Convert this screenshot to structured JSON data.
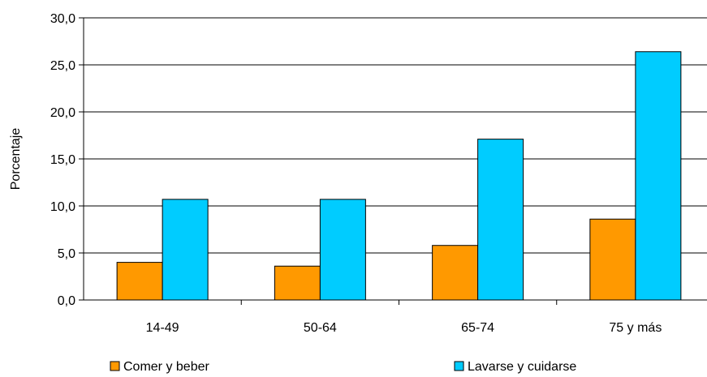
{
  "chart_data": {
    "type": "bar",
    "categories": [
      "14-49",
      "50-64",
      "65-74",
      "75 y más"
    ],
    "series": [
      {
        "name": "Comer y beber",
        "values": [
          4.0,
          3.6,
          5.8,
          8.6
        ],
        "color": "#ff9900"
      },
      {
        "name": "Lavarse y cuidarse",
        "values": [
          10.7,
          10.7,
          17.1,
          26.4
        ],
        "color": "#00ccff"
      }
    ],
    "title": "",
    "xlabel": "",
    "ylabel": "Porcentaje",
    "ylim": [
      0,
      30
    ],
    "yticks": [
      "0,0",
      "5,0",
      "10,0",
      "15,0",
      "20,0",
      "25,0",
      "30,0"
    ],
    "grid": true,
    "legend_position": "bottom"
  }
}
